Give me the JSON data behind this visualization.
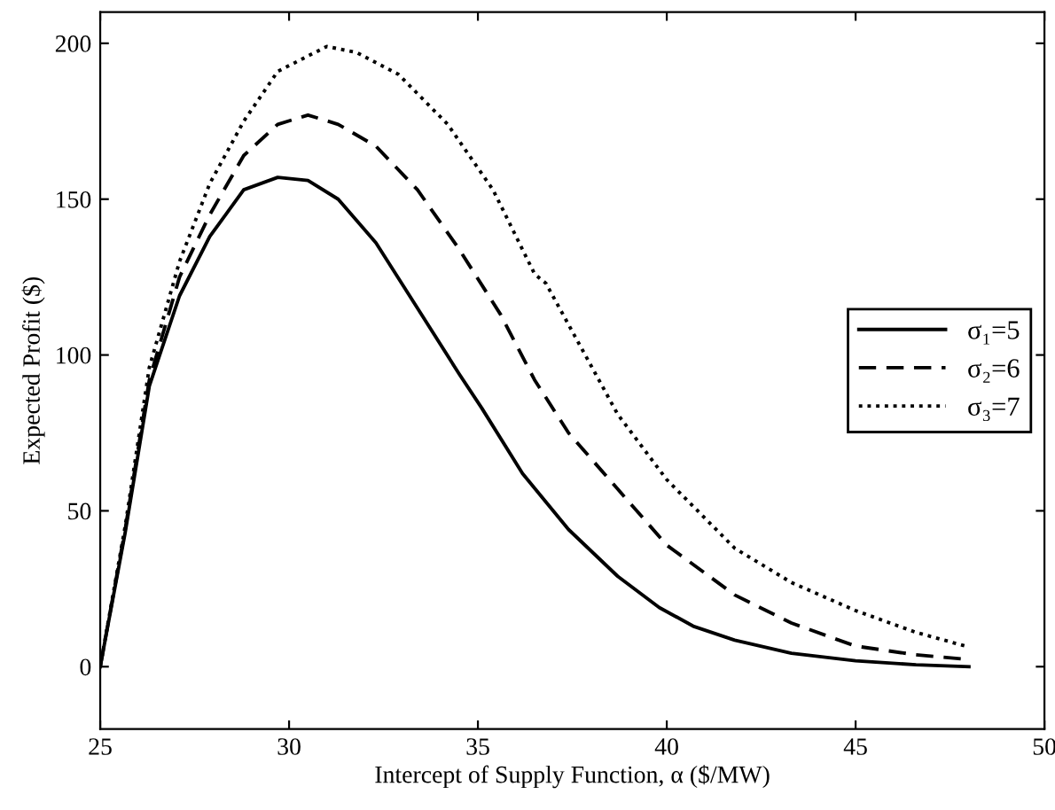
{
  "chart_data": {
    "type": "line",
    "xlabel": "Intercept of Supply Function, α ($/MW)",
    "ylabel": "Expected Profit ($)",
    "xlim": [
      25,
      50
    ],
    "xticks": [
      25,
      30,
      35,
      40,
      45,
      50
    ],
    "ylim": [
      -20,
      210
    ],
    "yticks": [
      0,
      50,
      100,
      150,
      200
    ],
    "grid": false,
    "legend": "right",
    "marker": "none",
    "series": [
      {
        "name": "σ₁=5",
        "color": "#000000",
        "line_style": "solid",
        "x": [
          25,
          25.66,
          26.3,
          27.1,
          27.9,
          28.8,
          29.7,
          30.5,
          31.3,
          32.3,
          33.4,
          34.5,
          35.1,
          36.18,
          37.4,
          38.7,
          39.8,
          40.7,
          41.8,
          43.3,
          45.0,
          46.6,
          48.0
        ],
        "values": [
          0,
          43,
          90,
          119,
          138,
          153,
          157,
          156,
          150,
          136,
          115,
          94,
          83,
          62,
          44,
          29,
          19,
          13,
          8.5,
          4.3,
          1.9,
          0.6,
          0
        ]
      },
      {
        "name": "σ₂=6",
        "color": "#000000",
        "line_style": "dashed",
        "x": [
          25,
          25.66,
          26.3,
          27.1,
          27.9,
          28.8,
          29.7,
          30.5,
          31.3,
          32.3,
          33.4,
          34.5,
          35.6,
          36.5,
          37.4,
          38.7,
          40.0,
          41.8,
          43.3,
          45.0,
          46.6,
          48.0
        ],
        "values": [
          0,
          44,
          92,
          125,
          145,
          164,
          174,
          177,
          174,
          167,
          153,
          134,
          113,
          92,
          75,
          57,
          39,
          23,
          14,
          6.6,
          3.8,
          2.3
        ]
      },
      {
        "name": "σ₃=7",
        "color": "#000000",
        "line_style": "dotted",
        "x": [
          25,
          25.66,
          26.3,
          27.1,
          27.9,
          28.8,
          29.7,
          31.0,
          31.8,
          32.9,
          34.2,
          35.4,
          36.5,
          36.8,
          38.7,
          40.0,
          41.8,
          43.3,
          45.0,
          46.6,
          48.0
        ],
        "values": [
          0,
          45,
          96,
          130,
          155,
          175,
          191,
          199,
          197,
          190,
          174,
          153,
          126,
          123,
          81,
          60,
          38,
          27,
          18,
          11,
          6.3
        ]
      }
    ]
  }
}
